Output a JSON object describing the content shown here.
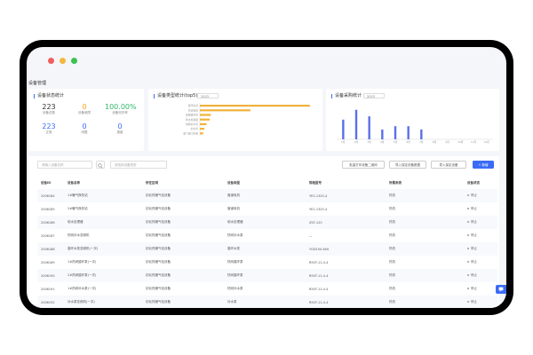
{
  "window": {
    "dots": [
      "#f25c5c",
      "#f5b83d",
      "#3cc24d"
    ],
    "page_title": "设备管理"
  },
  "status_card": {
    "title": "设备状态统计",
    "stats": [
      {
        "value": "223",
        "label": "设备总数",
        "color": "#333333"
      },
      {
        "value": "0",
        "label": "设备故障",
        "color": "#f5a623"
      },
      {
        "value": "100.00%",
        "label": "设备完好率",
        "color": "#2fb86a"
      },
      {
        "value": "223",
        "label": "正常",
        "color": "#3b6cf6"
      },
      {
        "value": "0",
        "label": "闲置",
        "color": "#3b6cf6"
      },
      {
        "value": "0",
        "label": "报废",
        "color": "#3b6cf6"
      }
    ]
  },
  "type_card": {
    "title": "设备类型统计(top5)",
    "year": "2023"
  },
  "purchase_card": {
    "title": "设备采购统计",
    "year": "2023"
  },
  "toolbar": {
    "search_placeholder": "请输入设备名称",
    "type_placeholder": "请选择设备类型",
    "print_label": "批量打印设备二维码",
    "import_label": "导入保定设备数据",
    "export_label": "导入保定设备",
    "add_label": "+ 新增"
  },
  "table": {
    "headers": [
      "设备ID",
      "设备名称",
      "所在区域",
      "设备类型",
      "规格型号",
      "所属系统",
      "设备状态"
    ],
    "rows": [
      [
        "2006184",
        "1#暖气换热站",
        "初北热暖气站设备",
        "管道电机",
        "YE2-132S-4",
        "热机",
        "停止"
      ],
      [
        "2006185",
        "2#暖气换热站",
        "初北热暖气站设备",
        "管道电机",
        "YE2-132S-4",
        "热机",
        "停止"
      ],
      [
        "2006186",
        "软水处理器",
        "初北热暖气站设备",
        "软水处理器",
        "ZSF-120",
        "热机",
        "停止"
      ],
      [
        "2006187",
        "热网补水变频机",
        "初北热暖气站设备",
        "热网补水泵",
        "—",
        "热机",
        "停止"
      ],
      [
        "2006188",
        "循环水泵变频机(一次)",
        "初北热暖气站设备",
        "循环水泵",
        "YGD150-600",
        "热机",
        "停止"
      ],
      [
        "2006189",
        "1#热网循环泵(一次)",
        "初北热暖气站设备",
        "热网循环泵",
        "R50T-11-4-4",
        "热机",
        "停止"
      ],
      [
        "2006190",
        "2#热网循环泵(一次)",
        "初北热暖气站设备",
        "热网循环泵",
        "R50T-11-4-4",
        "热机",
        "停止"
      ],
      [
        "2006191",
        "1#热网补水泵(一次)",
        "初北热暖气站设备",
        "热网补水泵",
        "R50T-11-4-4",
        "热机",
        "停止"
      ],
      [
        "2006192",
        "补水泵变频机(一次)",
        "初北热暖气站设备",
        "补水泵",
        "R50T-11-4-4",
        "热机",
        "停止"
      ],
      [
        "2006193",
        "1#暖气阀门控制",
        "东北区",
        "暖气阀门控制",
        "—",
        "热机",
        "正常"
      ]
    ]
  },
  "chart_data": [
    {
      "type": "bar",
      "orientation": "horizontal",
      "title": "设备类型统计(top5)",
      "categories": [
        "循环水泵",
        "管道电机",
        "热网循环泵",
        "软水处理器",
        "热网补水泵",
        "补水泵",
        "暖气阀门控制"
      ],
      "values": [
        100,
        46,
        10,
        9,
        6,
        4,
        3
      ],
      "xlim": [
        0,
        105
      ],
      "color": "#f0b23a"
    },
    {
      "type": "bar",
      "title": "设备采购统计",
      "categories": [
        "1月",
        "2月",
        "3月",
        "4月",
        "5月",
        "6月",
        "7月",
        "8月",
        "9月",
        "10月",
        "11月",
        "12月"
      ],
      "values": [
        60,
        90,
        70,
        30,
        40,
        40,
        30,
        0,
        0,
        0,
        0,
        0
      ],
      "ylim": [
        0,
        100
      ],
      "color": "#5b6fe6"
    }
  ]
}
